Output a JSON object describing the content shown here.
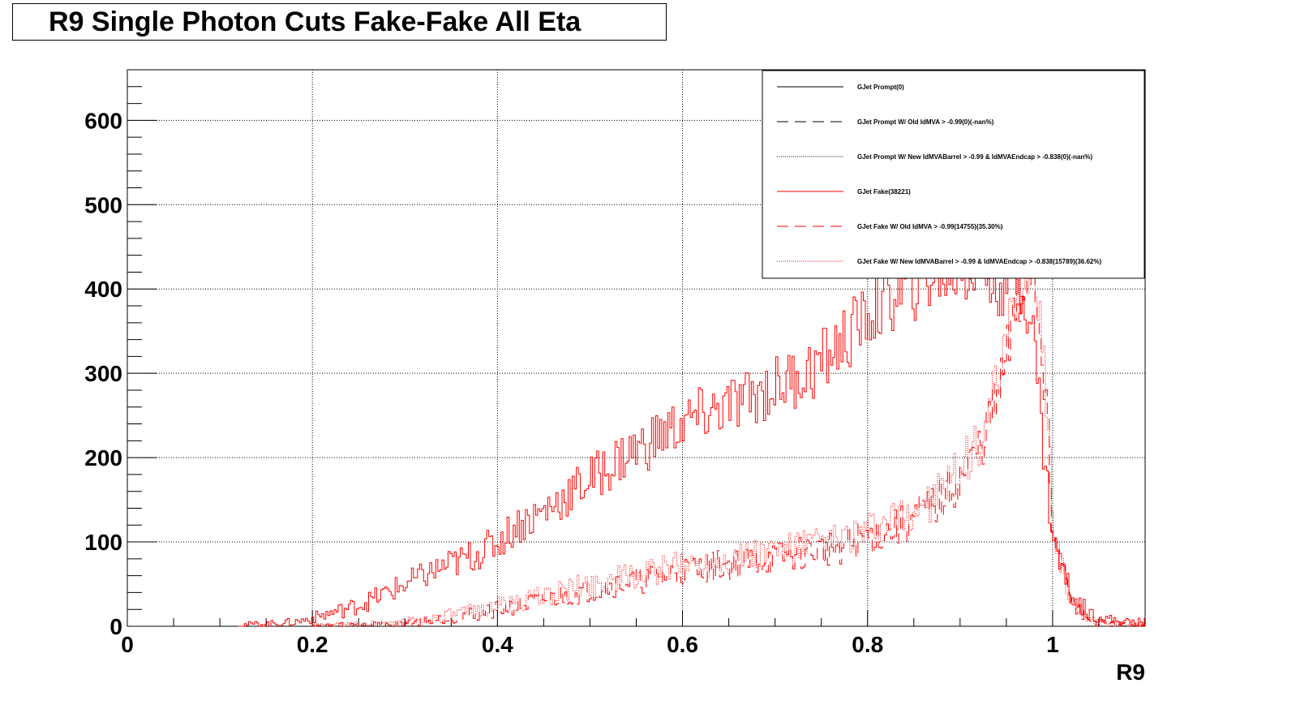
{
  "chart_data": {
    "type": "line",
    "title": "R9 Single Photon Cuts Fake-Fake All Eta",
    "xlabel": "R9",
    "ylabel": "",
    "xlim": [
      0,
      1.1
    ],
    "ylim": [
      0,
      660
    ],
    "grid": true,
    "x_ticks": [
      {
        "value": 0,
        "label": "0"
      },
      {
        "value": 0.2,
        "label": "0.2"
      },
      {
        "value": 0.4,
        "label": "0.4"
      },
      {
        "value": 0.6,
        "label": "0.6"
      },
      {
        "value": 0.8,
        "label": "0.8"
      },
      {
        "value": 1.0,
        "label": "1"
      }
    ],
    "y_ticks": [
      {
        "value": 0,
        "label": "0"
      },
      {
        "value": 100,
        "label": "100"
      },
      {
        "value": 200,
        "label": "200"
      },
      {
        "value": 300,
        "label": "300"
      },
      {
        "value": 400,
        "label": "400"
      },
      {
        "value": 500,
        "label": "500"
      },
      {
        "value": 600,
        "label": "600"
      }
    ],
    "legend_position": "top-right",
    "series": [
      {
        "name": "GJet Prompt(0)",
        "color": "#000000",
        "dash": "solid",
        "x": [],
        "values": []
      },
      {
        "name": "GJet Prompt W/ Old IdMVA > -0.99(0)(-nan%)",
        "color": "#000000",
        "dash": "long-dash",
        "x": [],
        "values": []
      },
      {
        "name": "GJet Prompt W/ New IdMVABarrel > -0.99 & IdMVAEndcap > -0.838(0)(-nan%)",
        "color": "#000000",
        "dash": "dotted",
        "x": [],
        "values": []
      },
      {
        "name": "GJet Fake(38221)",
        "color": "#ff0000",
        "dash": "solid",
        "x": [
          0.12,
          0.15,
          0.18,
          0.2,
          0.22,
          0.24,
          0.26,
          0.28,
          0.3,
          0.32,
          0.34,
          0.36,
          0.38,
          0.4,
          0.42,
          0.44,
          0.46,
          0.48,
          0.5,
          0.52,
          0.54,
          0.56,
          0.58,
          0.6,
          0.62,
          0.64,
          0.66,
          0.68,
          0.7,
          0.72,
          0.74,
          0.76,
          0.78,
          0.8,
          0.82,
          0.84,
          0.86,
          0.88,
          0.9,
          0.92,
          0.94,
          0.96,
          0.97,
          0.98,
          0.99,
          1.0,
          1.02,
          1.04,
          1.06,
          1.08,
          1.1
        ],
        "values": [
          2,
          3,
          5,
          10,
          16,
          22,
          30,
          40,
          50,
          60,
          70,
          78,
          88,
          100,
          120,
          130,
          145,
          160,
          175,
          190,
          205,
          215,
          230,
          240,
          250,
          258,
          265,
          275,
          285,
          295,
          305,
          325,
          345,
          370,
          385,
          400,
          412,
          420,
          425,
          420,
          410,
          420,
          400,
          330,
          200,
          100,
          35,
          15,
          8,
          5,
          5
        ]
      },
      {
        "name": "GJet Fake W/ Old IdMVA > -0.99(14755)(35.30%)",
        "color": "#ff0000",
        "dash": "long-dash",
        "x": [
          0.2,
          0.24,
          0.28,
          0.32,
          0.36,
          0.4,
          0.44,
          0.48,
          0.52,
          0.56,
          0.6,
          0.64,
          0.68,
          0.72,
          0.76,
          0.8,
          0.84,
          0.88,
          0.9,
          0.92,
          0.94,
          0.96,
          0.97,
          0.98,
          0.99,
          1.0,
          1.02,
          1.04,
          1.06,
          1.08,
          1.1
        ],
        "values": [
          1,
          2,
          3,
          6,
          12,
          20,
          28,
          38,
          48,
          55,
          65,
          72,
          78,
          85,
          92,
          105,
          120,
          150,
          175,
          210,
          270,
          370,
          415,
          420,
          300,
          110,
          25,
          6,
          3,
          2,
          2
        ]
      },
      {
        "name": "GJet Fake W/ New IdMVABarrel > -0.99 & IdMVAEndcap > -0.838(15789)(36.62%)",
        "color": "#ff0000",
        "dash": "dotted",
        "x": [
          0.2,
          0.24,
          0.28,
          0.32,
          0.36,
          0.4,
          0.44,
          0.48,
          0.52,
          0.56,
          0.6,
          0.64,
          0.68,
          0.72,
          0.76,
          0.8,
          0.84,
          0.88,
          0.9,
          0.92,
          0.94,
          0.96,
          0.97,
          0.98,
          0.99,
          1.0,
          1.02,
          1.04,
          1.06,
          1.08,
          1.1
        ],
        "values": [
          1,
          2,
          4,
          8,
          15,
          25,
          33,
          45,
          55,
          62,
          72,
          80,
          86,
          93,
          100,
          112,
          130,
          160,
          185,
          220,
          285,
          390,
          430,
          440,
          310,
          115,
          27,
          7,
          3,
          2,
          2
        ]
      }
    ]
  }
}
